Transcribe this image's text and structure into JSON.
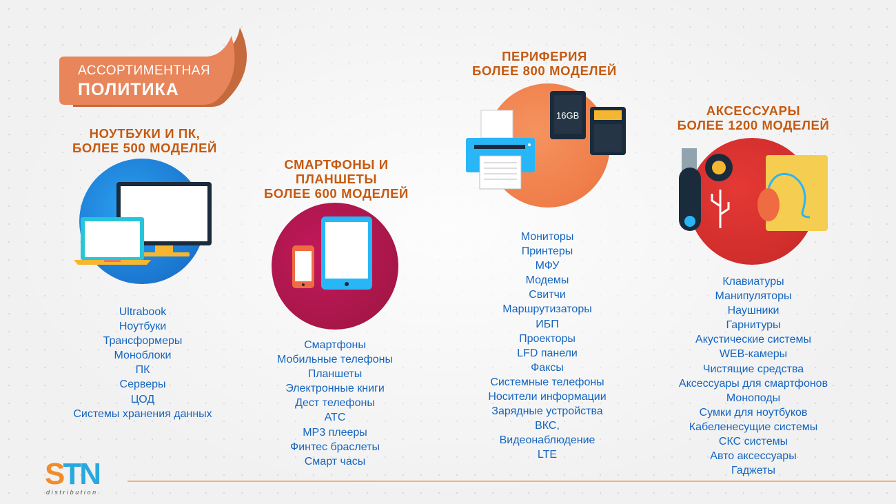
{
  "banner": {
    "line1": "АССОРТИМЕНТНАЯ",
    "line2": "ПОЛИТИКА"
  },
  "logo": {
    "text_s": "S",
    "text_t": "T",
    "text_n": "N",
    "sub": "distribution"
  },
  "columns": [
    {
      "title": [
        "НОУТБУКИ И ПК,",
        "БОЛЕЕ 500 МОДЕЛЕЙ"
      ],
      "items": [
        "Ultrabook",
        "Ноутбуки",
        "Трансформеры",
        "Моноблоки",
        "ПК",
        "Серверы",
        "ЦОД",
        "Системы хранения данных"
      ]
    },
    {
      "title": [
        "СМАРТФОНЫ И",
        "ПЛАНШЕТЫ",
        "БОЛЕЕ 600 МОДЕЛЕЙ"
      ],
      "items": [
        "Смартфоны",
        "Мобильные телефоны",
        "Планшеты",
        "Электронные книги",
        "Дест телефоны",
        "АТС",
        "МР3 плееры",
        "Финтес браслеты",
        "Смарт часы"
      ]
    },
    {
      "title": [
        "ПЕРИФЕРИЯ",
        "БОЛЕЕ 800 МОДЕЛЕЙ"
      ],
      "items": [
        "Мониторы",
        "Принтеры",
        "МФУ",
        "Модемы",
        "Свитчи",
        "Маршрутизаторы",
        "ИБП",
        "Проекторы",
        "LFD панели",
        "Факсы",
        "Системные телефоны",
        "Носители информации",
        "Зарядные устройства",
        "ВКС,",
        "Видеонаблюдение",
        "LTE"
      ],
      "card_label": "16GB"
    },
    {
      "title": [
        "АКСЕССУАРЫ",
        "БОЛЕЕ 1200 МОДЕЛЕЙ"
      ],
      "items": [
        "Клавиатуры",
        "Манипуляторы",
        "Наушники",
        "Гарнитуры",
        "Акустические системы",
        "WEB-камеры",
        "Чистящие средства",
        "Аксессуары для смартфонов",
        "Моноподы",
        "Сумки для ноутбуков",
        "Кабеленесущие системы",
        "СКС системы",
        "Авто аксессуары",
        "Гаджеты"
      ]
    }
  ],
  "colors": {
    "orange": "#c55a11",
    "blue": "#1565c0",
    "banner": "#e07b48",
    "circle_blue": "#1e88e5",
    "circle_red": "#b71c4a",
    "circle_orange": "#f2834f",
    "circle_crimson": "#d32f2f"
  }
}
